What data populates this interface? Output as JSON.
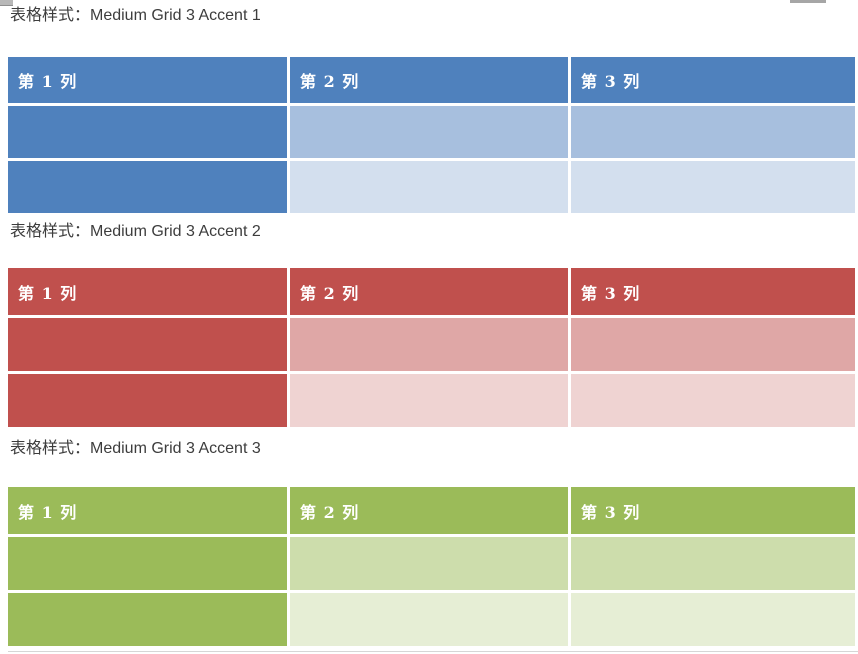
{
  "page": {
    "background": "#FFFFFF",
    "bottom_divider_color": "#D6D6D6",
    "title_text_color": "#3D3D3D",
    "header_text_color": "#FFFFFF"
  },
  "decorations": {
    "top_left_fragment": "cropped-ui-fragment",
    "top_right_fragment": "cropped-scrollbar-fragment"
  },
  "sections": [
    {
      "title": "表格样式：Medium Grid 3 Accent 1",
      "style_name": "Medium Grid 3 Accent 1",
      "accent": "#4F81BD",
      "tint_medium": "#A7BFDE",
      "tint_light": "#D3DFEE",
      "headers": [
        "第 1 列",
        "第 2 列",
        "第 3 列"
      ]
    },
    {
      "title": "表格样式：Medium Grid 3 Accent 2",
      "style_name": "Medium Grid 3 Accent 2",
      "accent": "#C0504D",
      "tint_medium": "#DFA7A6",
      "tint_light": "#EFD3D2",
      "headers": [
        "第 1 列",
        "第 2 列",
        "第 3 列"
      ]
    },
    {
      "title": "表格样式：Medium Grid 3 Accent 3",
      "style_name": "Medium Grid 3 Accent 3",
      "accent": "#9BBB59",
      "tint_medium": "#CDDDAC",
      "tint_light": "#E6EED5",
      "headers": [
        "第 1 列",
        "第 2 列",
        "第 3 列"
      ]
    }
  ]
}
